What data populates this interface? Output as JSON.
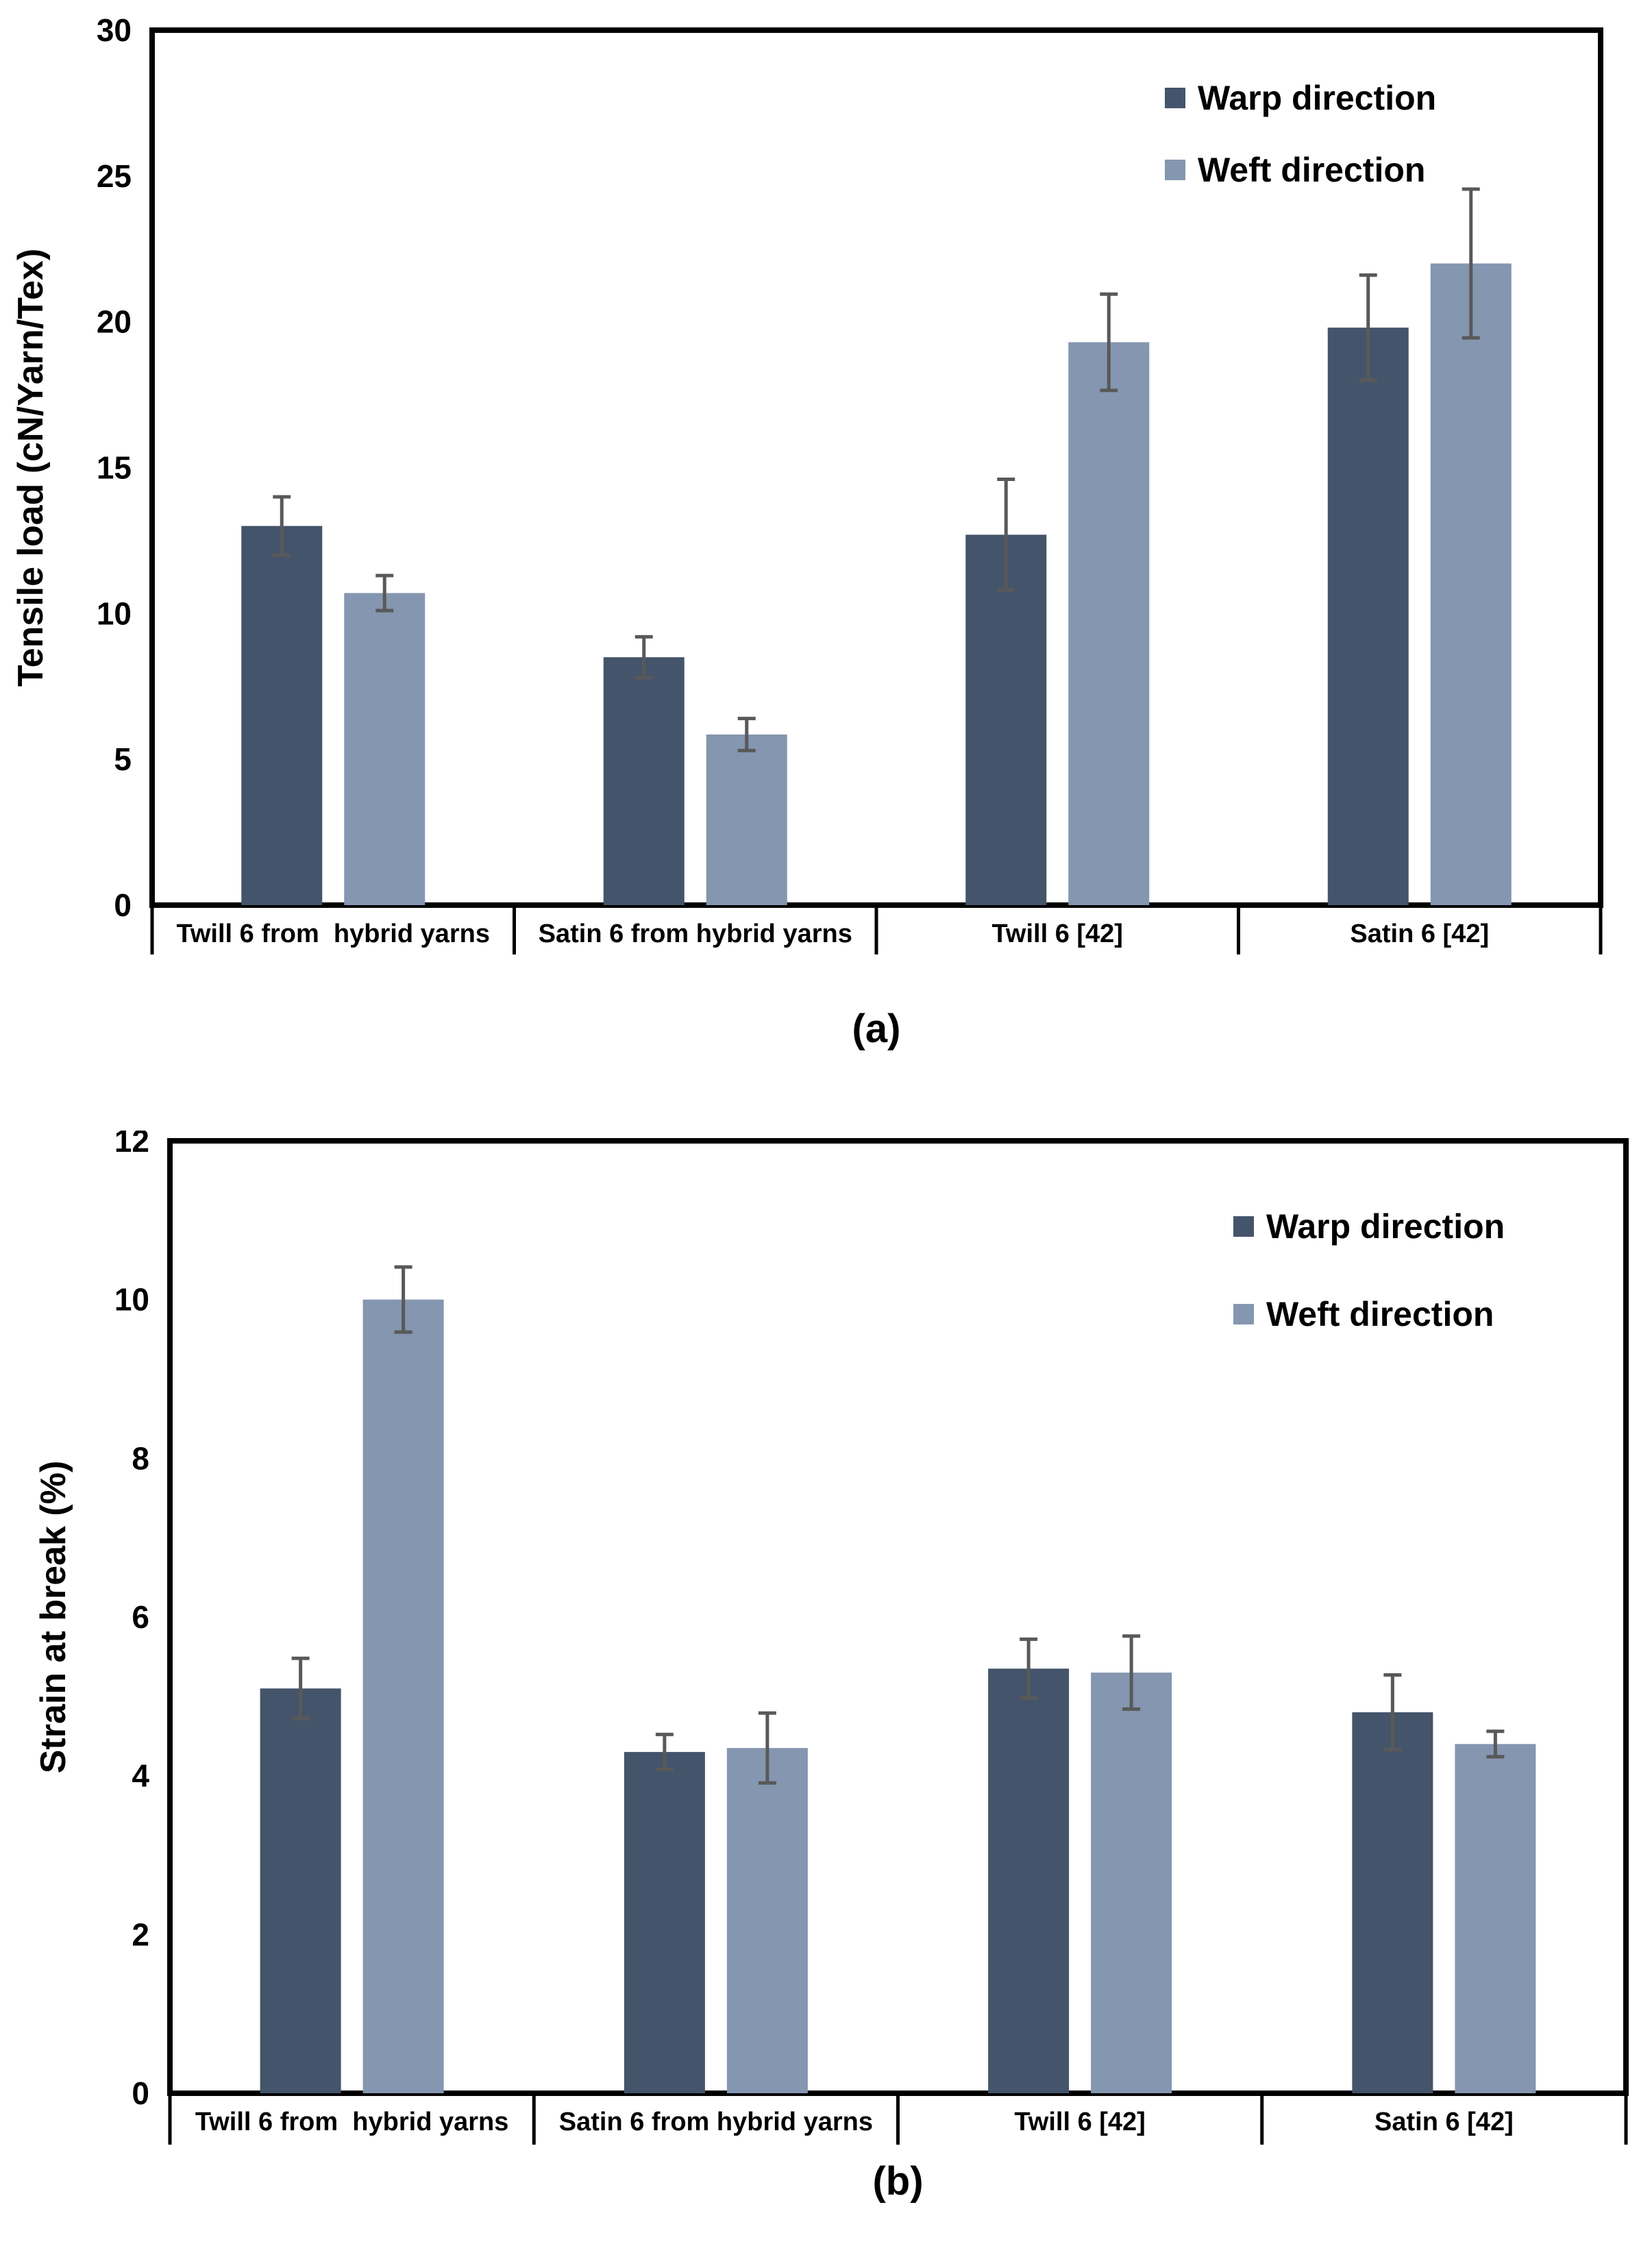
{
  "page": {
    "background": "#ffffff",
    "text_color": "#000000"
  },
  "chart_data": [
    {
      "id": "a",
      "type": "bar",
      "caption": "(a)",
      "ylabel": "Tensile load (cN/Yarn/Tex)",
      "ylim": [
        0,
        30
      ],
      "ytick_step": 5,
      "grid": false,
      "legend_position": "top-right-inside",
      "error_bar_color": "#595959",
      "categories": [
        "Twill 6 from  hybrid yarns",
        "Satin 6 from hybrid yarns",
        "Twill 6 [42]",
        "Satin 6 [42]"
      ],
      "series": [
        {
          "name": "Warp direction",
          "color": "#44546A",
          "values": [
            13.0,
            8.5,
            12.7,
            19.8
          ],
          "errors": [
            1.0,
            0.7,
            1.9,
            1.8
          ]
        },
        {
          "name": "Weft direction",
          "color": "#8496B0",
          "values": [
            10.7,
            5.85,
            19.3,
            22.0
          ],
          "errors": [
            0.6,
            0.55,
            1.65,
            2.55
          ]
        }
      ]
    },
    {
      "id": "b",
      "type": "bar",
      "caption": "(b)",
      "ylabel": "Strain at break (%)",
      "ylim": [
        0,
        12
      ],
      "ytick_step": 2,
      "grid": false,
      "legend_position": "top-right-inside",
      "error_bar_color": "#595959",
      "categories": [
        "Twill 6 from  hybrid yarns",
        "Satin 6 from hybrid yarns",
        "Twill 6 [42]",
        "Satin 6 [42]"
      ],
      "series": [
        {
          "name": "Warp direction",
          "color": "#44546A",
          "values": [
            5.1,
            4.3,
            5.35,
            4.8
          ],
          "errors": [
            0.38,
            0.22,
            0.37,
            0.47
          ]
        },
        {
          "name": "Weft direction",
          "color": "#8496B0",
          "values": [
            10.0,
            4.35,
            5.3,
            4.4
          ],
          "errors": [
            0.41,
            0.44,
            0.46,
            0.16
          ]
        }
      ]
    }
  ]
}
